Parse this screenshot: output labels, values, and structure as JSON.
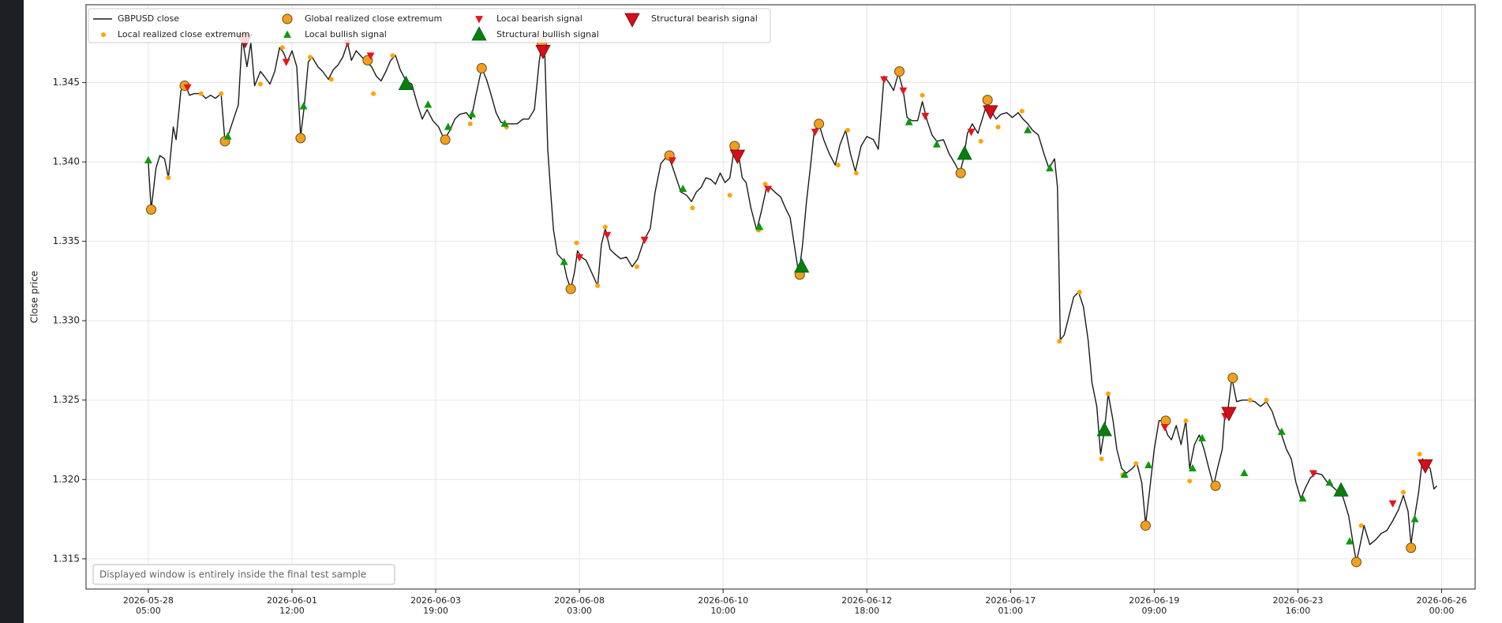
{
  "chart_data": {
    "type": "line",
    "y_label": "Close price",
    "annotation": "Displayed window is entirely inside the final test sample",
    "xlim": [
      -65,
      1385
    ],
    "ylim": [
      1.3131,
      1.3499
    ],
    "grid": true,
    "legend": "upper left",
    "xticks": [
      {
        "value": 0,
        "label": "2026-05-28\n05:00"
      },
      {
        "value": 150,
        "label": "2026-06-01\n12:00"
      },
      {
        "value": 300,
        "label": "2026-06-03\n19:00"
      },
      {
        "value": 450,
        "label": "2026-06-08\n03:00"
      },
      {
        "value": 600,
        "label": "2026-06-10\n10:00"
      },
      {
        "value": 750,
        "label": "2026-06-12\n18:00"
      },
      {
        "value": 900,
        "label": "2026-06-17\n01:00"
      },
      {
        "value": 1050,
        "label": "2026-06-19\n09:00"
      },
      {
        "value": 1200,
        "label": "2026-06-23\n16:00"
      },
      {
        "value": 1350,
        "label": "2026-06-26\n00:00"
      }
    ],
    "yticks": [
      1.315,
      {
        "value": 1.32,
        "label": "1.320"
      },
      1.325,
      {
        "value": 1.33,
        "label": "1.330"
      },
      1.335,
      {
        "value": 1.34,
        "label": "1.340"
      },
      1.345
    ],
    "series": [
      {
        "name": "GBPUSD close",
        "color": "#1a1a1a",
        "marker": "line",
        "x": [
          0,
          3,
          8,
          12,
          17,
          21,
          26,
          29,
          34,
          39,
          43,
          48,
          55,
          60,
          65,
          70,
          76,
          80,
          84,
          89,
          94,
          98,
          103,
          107,
          111,
          117,
          121,
          127,
          132,
          137,
          141,
          145,
          150,
          155,
          159,
          163,
          167,
          171,
          177,
          182,
          188,
          193,
          198,
          203,
          208,
          212,
          217,
          223,
          228,
          233,
          238,
          243,
          248,
          253,
          258,
          263,
          269,
          275,
          281,
          286,
          291,
          297,
          303,
          309,
          315,
          320,
          325,
          332,
          337,
          342,
          348,
          353,
          358,
          363,
          368,
          373,
          380,
          385,
          391,
          397,
          403,
          408,
          411,
          414,
          417,
          420,
          423,
          427,
          433,
          437,
          441,
          445,
          448,
          452,
          457,
          463,
          469,
          473,
          477,
          482,
          487,
          493,
          499,
          505,
          511,
          517,
          524,
          529,
          535,
          542,
          546,
          551,
          556,
          562,
          567,
          572,
          577,
          582,
          587,
          592,
          597,
          602,
          607,
          612,
          616,
          620,
          624,
          629,
          635,
          640,
          645,
          649,
          654,
          660,
          665,
          670,
          675,
          679,
          683,
          687,
          691,
          695,
          700,
          705,
          711,
          717,
          722,
          728,
          733,
          738,
          744,
          750,
          757,
          762,
          768,
          773,
          778,
          783,
          788,
          792,
          797,
          803,
          808,
          813,
          818,
          823,
          830,
          836,
          842,
          847,
          851,
          855,
          860,
          866,
          872,
          876,
          879,
          885,
          890,
          896,
          902,
          908,
          913,
          918,
          923,
          929,
          935,
          940,
          946,
          949,
          952,
          956,
          961,
          966,
          971,
          976,
          981,
          985,
          990,
          994,
          998,
          1002,
          1007,
          1011,
          1016,
          1021,
          1027,
          1032,
          1037,
          1041,
          1045,
          1050,
          1055,
          1059,
          1064,
          1068,
          1073,
          1078,
          1083,
          1087,
          1092,
          1097,
          1102,
          1107,
          1112,
          1116,
          1121,
          1124,
          1127,
          1131,
          1136,
          1142,
          1148,
          1155,
          1161,
          1167,
          1173,
          1178,
          1183,
          1188,
          1193,
          1198,
          1203,
          1208,
          1213,
          1219,
          1225,
          1231,
          1237,
          1242,
          1247,
          1253,
          1257,
          1261,
          1265,
          1269,
          1275,
          1281,
          1287,
          1293,
          1299,
          1305,
          1310,
          1315,
          1318,
          1322,
          1326,
          1330,
          1333,
          1338,
          1342,
          1345
        ],
        "values": [
          1.34,
          1.337,
          1.3396,
          1.3404,
          1.3402,
          1.339,
          1.3422,
          1.3414,
          1.3445,
          1.3448,
          1.3442,
          1.3443,
          1.3443,
          1.344,
          1.3442,
          1.344,
          1.3443,
          1.3413,
          1.3418,
          1.3427,
          1.3436,
          1.3478,
          1.346,
          1.3475,
          1.3448,
          1.3457,
          1.3454,
          1.3449,
          1.3457,
          1.3472,
          1.3469,
          1.3463,
          1.347,
          1.346,
          1.3416,
          1.3436,
          1.3463,
          1.3466,
          1.346,
          1.3457,
          1.3452,
          1.3458,
          1.3461,
          1.3466,
          1.3475,
          1.3464,
          1.347,
          1.3466,
          1.3463,
          1.346,
          1.3454,
          1.3451,
          1.3457,
          1.3464,
          1.3467,
          1.3458,
          1.3451,
          1.3449,
          1.3436,
          1.3427,
          1.3433,
          1.3426,
          1.3422,
          1.3414,
          1.342,
          1.3427,
          1.343,
          1.3431,
          1.3427,
          1.3442,
          1.3459,
          1.3452,
          1.3442,
          1.3431,
          1.3425,
          1.3424,
          1.3424,
          1.3424,
          1.3427,
          1.3427,
          1.3433,
          1.3463,
          1.3475,
          1.3466,
          1.3408,
          1.3381,
          1.3357,
          1.3342,
          1.3338,
          1.3327,
          1.332,
          1.3331,
          1.3344,
          1.334,
          1.3338,
          1.333,
          1.3322,
          1.3348,
          1.3358,
          1.3345,
          1.3342,
          1.3339,
          1.334,
          1.3334,
          1.3339,
          1.335,
          1.3358,
          1.3381,
          1.3399,
          1.3404,
          1.3399,
          1.339,
          1.3381,
          1.3379,
          1.3375,
          1.3381,
          1.3384,
          1.339,
          1.3389,
          1.3386,
          1.3393,
          1.3387,
          1.339,
          1.341,
          1.3405,
          1.339,
          1.3387,
          1.3371,
          1.3357,
          1.3369,
          1.3383,
          1.3384,
          1.3381,
          1.3378,
          1.3371,
          1.3365,
          1.3345,
          1.3329,
          1.3348,
          1.3375,
          1.3396,
          1.3419,
          1.3424,
          1.3414,
          1.3405,
          1.3398,
          1.3411,
          1.342,
          1.3405,
          1.3394,
          1.341,
          1.3416,
          1.3414,
          1.3408,
          1.3454,
          1.345,
          1.3445,
          1.3456,
          1.3445,
          1.3428,
          1.3426,
          1.3426,
          1.3438,
          1.3426,
          1.3417,
          1.3413,
          1.3414,
          1.3405,
          1.3399,
          1.3393,
          1.3402,
          1.3418,
          1.3424,
          1.3418,
          1.343,
          1.3438,
          1.3433,
          1.3427,
          1.343,
          1.3431,
          1.3428,
          1.3431,
          1.3427,
          1.3424,
          1.342,
          1.3417,
          1.3405,
          1.3396,
          1.3402,
          1.3384,
          1.3288,
          1.3291,
          1.3303,
          1.3315,
          1.3318,
          1.3309,
          1.3288,
          1.3261,
          1.3246,
          1.3216,
          1.3231,
          1.3254,
          1.3237,
          1.3219,
          1.3207,
          1.3204,
          1.3207,
          1.321,
          1.3198,
          1.3172,
          1.3192,
          1.3219,
          1.3237,
          1.3237,
          1.3228,
          1.3225,
          1.3234,
          1.3222,
          1.3237,
          1.3207,
          1.3222,
          1.3228,
          1.3219,
          1.3207,
          1.3196,
          1.3207,
          1.3219,
          1.3243,
          1.3244,
          1.3264,
          1.3249,
          1.325,
          1.325,
          1.3249,
          1.3246,
          1.3249,
          1.3243,
          1.3234,
          1.3228,
          1.3219,
          1.3213,
          1.3198,
          1.3188,
          1.3195,
          1.3201,
          1.3204,
          1.3203,
          1.3198,
          1.3195,
          1.3192,
          1.3189,
          1.3177,
          1.3162,
          1.3148,
          1.3159,
          1.3171,
          1.3159,
          1.3162,
          1.3166,
          1.3168,
          1.3174,
          1.3181,
          1.319,
          1.318,
          1.3159,
          1.3177,
          1.3192,
          1.3213,
          1.321,
          1.3207,
          1.3194,
          1.3196
        ]
      },
      {
        "name": "Local realized close extremum",
        "color": "#ffa500",
        "marker": "dot",
        "x": [
          21,
          55,
          76,
          117,
          140,
          169,
          191,
          235,
          255,
          336,
          374,
          447,
          469,
          477,
          510,
          568,
          607,
          637,
          644,
          720,
          730,
          739,
          808,
          869,
          887,
          912,
          951,
          972,
          995,
          1002,
          1017,
          1031,
          1083,
          1087,
          1150,
          1167,
          1266,
          1310,
          1327
        ],
        "values": [
          1.339,
          1.3443,
          1.3443,
          1.3449,
          1.3472,
          1.3466,
          1.3452,
          1.3443,
          1.3467,
          1.3424,
          1.3422,
          1.3349,
          1.3322,
          1.3359,
          1.3334,
          1.3371,
          1.3379,
          1.3357,
          1.3386,
          1.3398,
          1.342,
          1.3393,
          1.3442,
          1.3413,
          1.3422,
          1.3432,
          1.3287,
          1.3318,
          1.3213,
          1.3254,
          1.3203,
          1.321,
          1.3237,
          1.3199,
          1.325,
          1.325,
          1.3171,
          1.3192,
          1.3216
        ]
      },
      {
        "name": "Global realized close extremum",
        "color": "#f0a020",
        "marker": "circle",
        "x": [
          3,
          38,
          80,
          99,
          159,
          229,
          310,
          348,
          411,
          441,
          544,
          612,
          680,
          700,
          784,
          848,
          876,
          1041,
          1062,
          1114,
          1132,
          1261,
          1318
        ],
        "values": [
          1.337,
          1.3448,
          1.3413,
          1.3479,
          1.3415,
          1.3464,
          1.3414,
          1.3459,
          1.3475,
          1.332,
          1.3404,
          1.341,
          1.3329,
          1.3424,
          1.3457,
          1.3393,
          1.3439,
          1.3171,
          1.3237,
          1.3196,
          1.3264,
          1.3148,
          1.3157
        ]
      },
      {
        "name": "Local bullish signal",
        "color": "#0a9a0a",
        "marker": "up",
        "x": [
          0,
          83,
          162,
          292,
          313,
          338,
          372,
          434,
          558,
          638,
          794,
          823,
          918,
          941,
          1019,
          1044,
          1090,
          1100,
          1144,
          1183,
          1205,
          1233,
          1254,
          1322
        ],
        "values": [
          1.3401,
          1.3416,
          1.3435,
          1.3436,
          1.3422,
          1.343,
          1.3424,
          1.3337,
          1.3383,
          1.3359,
          1.3425,
          1.3411,
          1.342,
          1.3396,
          1.3203,
          1.3209,
          1.3207,
          1.3226,
          1.3204,
          1.323,
          1.3188,
          1.3198,
          1.3161,
          1.3175
        ]
      },
      {
        "name": "Local bearish signal",
        "color": "#e8141c",
        "marker": "down",
        "x": [
          41,
          144,
          208,
          232,
          450,
          479,
          518,
          547,
          647,
          696,
          768,
          788,
          811,
          859,
          1061,
          1124,
          1216,
          1299
        ],
        "values": [
          1.3447,
          1.3463,
          1.3475,
          1.3467,
          1.334,
          1.3354,
          1.3351,
          1.3401,
          1.3383,
          1.3419,
          1.3452,
          1.3445,
          1.3429,
          1.3419,
          1.3233,
          1.324,
          1.3204,
          1.3185
        ]
      },
      {
        "name": "Structural bullish signal",
        "color": "#0a7d0a",
        "marker": "big-up",
        "x": [
          269,
          682,
          852,
          998,
          1245
        ],
        "values": [
          1.3449,
          1.3334,
          1.3405,
          1.3231,
          1.3193
        ]
      },
      {
        "name": "Structural bearish signal",
        "color": "#d0101a",
        "marker": "big-down",
        "x": [
          101,
          412,
          615,
          879,
          1128,
          1333
        ],
        "values": [
          1.3477,
          1.347,
          1.3404,
          1.3432,
          1.3242,
          1.3209
        ]
      }
    ]
  }
}
